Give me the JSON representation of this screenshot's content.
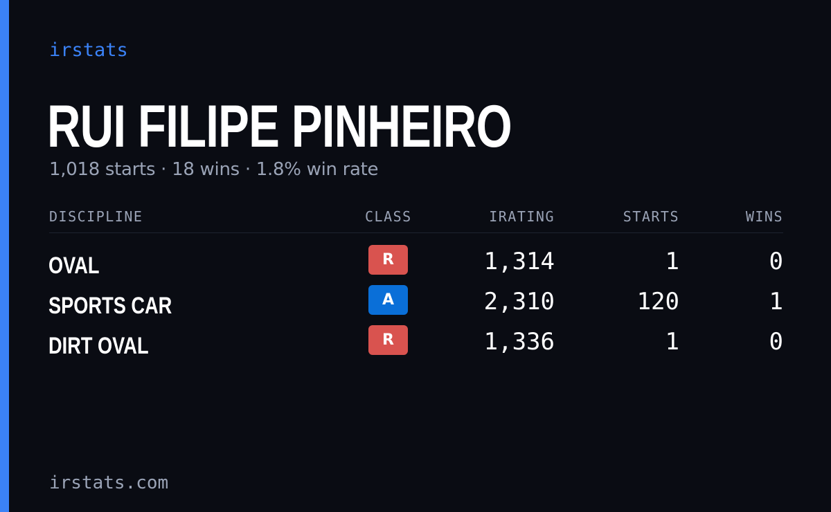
{
  "brand": "irstats",
  "driver": {
    "name": "RUI FILIPE PINHEIRO",
    "summary": {
      "starts": "1,018 starts",
      "wins": "18 wins",
      "win_rate": "1.8% win rate",
      "separator": "·"
    }
  },
  "table": {
    "headers": {
      "discipline": "DISCIPLINE",
      "class": "CLASS",
      "irating": "IRATING",
      "starts": "STARTS",
      "wins": "WINS"
    },
    "rows": [
      {
        "discipline": "OVAL",
        "class": "R",
        "class_color": "#d9534f",
        "irating": "1,314",
        "starts": "1",
        "wins": "0"
      },
      {
        "discipline": "SPORTS CAR",
        "class": "A",
        "class_color": "#0a6fd8",
        "irating": "2,310",
        "starts": "120",
        "wins": "1"
      },
      {
        "discipline": "DIRT OVAL",
        "class": "R",
        "class_color": "#d9534f",
        "irating": "1,336",
        "starts": "1",
        "wins": "0"
      }
    ]
  },
  "footer": "irstats.com",
  "colors": {
    "background": "#0a0c13",
    "accent": "#3b82f6",
    "muted_text": "#9aa3b6",
    "class_r": "#d9534f",
    "class_a": "#0a6fd8"
  }
}
